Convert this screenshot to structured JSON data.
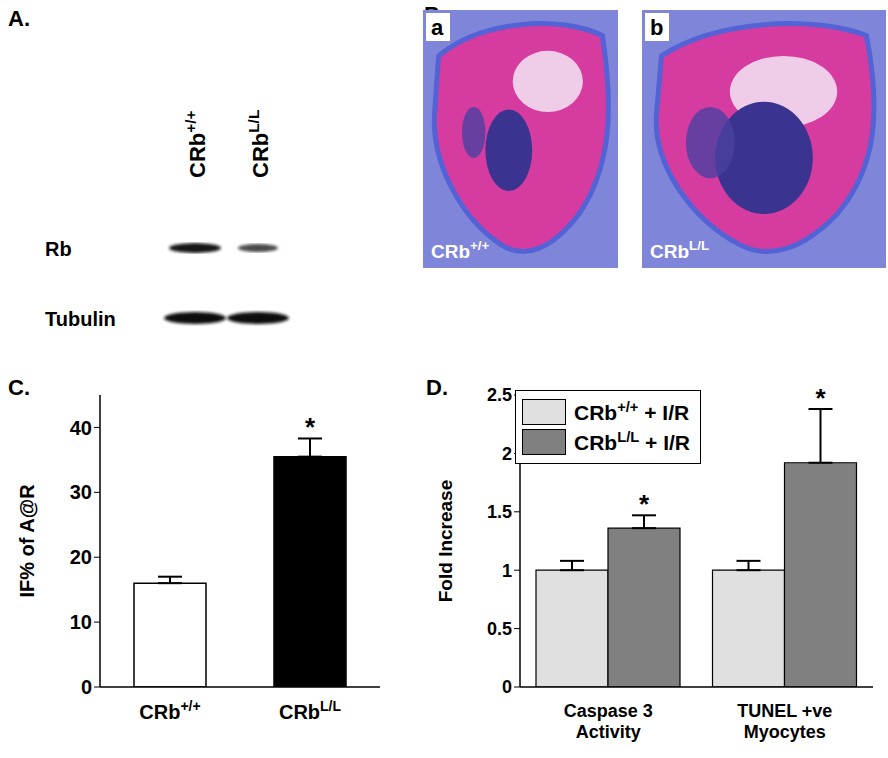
{
  "panel_a": {
    "title": "A.",
    "lanes": [
      "CRb+/+",
      "CRbL/L"
    ],
    "rows": [
      "Rb",
      "Tubulin"
    ]
  },
  "panel_b": {
    "title": "B.",
    "images": [
      {
        "tag": "a",
        "caption": "CRb+/+"
      },
      {
        "tag": "b",
        "caption": "CRbL/L"
      }
    ]
  },
  "chart_data": [
    {
      "title": "C.",
      "type": "bar",
      "categories": [
        "CRb+/+",
        "CRbL/L"
      ],
      "values": [
        16,
        35.5
      ],
      "errors": [
        1,
        2.8
      ],
      "colors": [
        "#ffffff",
        "#000000"
      ],
      "ylabel": "IF% of A@R",
      "ylim": [
        0,
        45
      ],
      "yticks": [
        0,
        10,
        20,
        30,
        40
      ],
      "grid": false,
      "annotations": [
        {
          "text": "*",
          "category": "CRbL/L"
        }
      ]
    },
    {
      "title": "D.",
      "type": "bar",
      "categories": [
        "Caspase 3 Activity",
        "TUNEL +ve Myocytes"
      ],
      "series": [
        {
          "name": "CRb+/+ + I/R",
          "color": "#e0e0e0",
          "values": [
            1,
            1
          ],
          "errors": [
            0.08,
            0.08
          ]
        },
        {
          "name": "CRbL/L + I/R",
          "color": "#808080",
          "values": [
            1.36,
            1.92
          ],
          "errors": [
            0.11,
            0.46
          ]
        }
      ],
      "ylabel": "Fold Increase",
      "ylim": [
        0,
        2.5
      ],
      "yticks": [
        0,
        0.5,
        1,
        1.5,
        2,
        2.5
      ],
      "grid": false,
      "legend": "upper left",
      "annotations": [
        {
          "text": "*",
          "category": "Caspase 3 Activity",
          "series": "CRbL/L + I/R"
        },
        {
          "text": "*",
          "category": "TUNEL +ve Myocytes",
          "series": "CRbL/L + I/R"
        }
      ]
    }
  ]
}
